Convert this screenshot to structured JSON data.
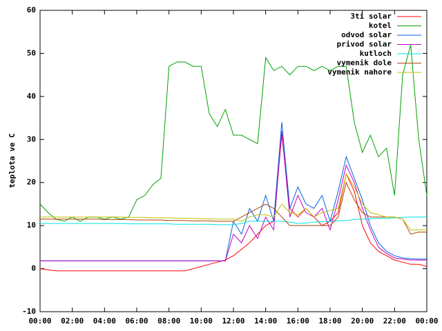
{
  "chart_data": {
    "type": "line",
    "ylabel": "teplota ve C",
    "x": [
      0,
      0.5,
      1,
      1.5,
      2,
      2.5,
      3,
      3.5,
      4,
      4.5,
      5,
      5.5,
      6,
      6.5,
      7,
      7.5,
      8,
      8.5,
      9,
      9.5,
      10,
      10.5,
      11,
      11.5,
      12,
      12.5,
      13,
      13.5,
      14,
      14.5,
      15,
      15.5,
      16,
      16.5,
      17,
      17.5,
      18,
      18.5,
      19,
      19.5,
      20,
      20.5,
      21,
      21.5,
      22,
      22.5,
      23,
      23.5,
      24
    ],
    "xlim": [
      0,
      24
    ],
    "xticks": [
      {
        "value": 0,
        "label": "00:00"
      },
      {
        "value": 2,
        "label": "02:00"
      },
      {
        "value": 4,
        "label": "04:00"
      },
      {
        "value": 6,
        "label": "06:00"
      },
      {
        "value": 8,
        "label": "08:00"
      },
      {
        "value": 10,
        "label": "10:00"
      },
      {
        "value": 12,
        "label": "12:00"
      },
      {
        "value": 14,
        "label": "14:00"
      },
      {
        "value": 16,
        "label": "16:00"
      },
      {
        "value": 18,
        "label": "18:00"
      },
      {
        "value": 20,
        "label": "20:00"
      },
      {
        "value": 22,
        "label": "22:00"
      },
      {
        "value": 24,
        "label": "00:00"
      }
    ],
    "ylim": [
      -10,
      60
    ],
    "yticks": [
      -10,
      0,
      10,
      20,
      30,
      40,
      50,
      60
    ],
    "legend": "top-right",
    "series": [
      {
        "name": "3ti solar",
        "color": "#ff0000",
        "values": [
          0,
          -0.3,
          -0.5,
          -0.5,
          -0.5,
          -0.5,
          -0.5,
          -0.5,
          -0.5,
          -0.5,
          -0.5,
          -0.5,
          -0.5,
          -0.5,
          -0.5,
          -0.5,
          -0.5,
          -0.5,
          -0.5,
          0,
          0.5,
          1,
          1.5,
          2,
          3,
          4.5,
          6,
          8,
          10,
          11,
          31,
          14,
          12,
          14,
          12,
          10,
          11,
          13,
          22,
          18,
          10,
          6,
          4,
          3,
          2,
          1.5,
          1,
          1,
          0.5
        ]
      },
      {
        "name": "kotel",
        "color": "#00a000",
        "values": [
          15,
          13,
          11.5,
          11,
          12,
          11,
          12,
          12,
          11.5,
          12,
          11.5,
          12,
          16,
          17,
          19.5,
          21,
          47,
          48,
          48,
          47,
          47,
          36,
          33,
          37,
          31,
          31,
          30,
          29,
          49,
          46,
          47,
          45,
          47,
          47,
          46,
          47,
          46,
          47,
          47,
          34,
          27,
          31,
          26,
          28,
          17,
          45,
          52,
          30,
          17
        ]
      },
      {
        "name": "odvod solar",
        "color": "#0060e0",
        "values": [
          1.8,
          1.8,
          1.8,
          1.8,
          1.8,
          1.8,
          1.8,
          1.8,
          1.8,
          1.8,
          1.8,
          1.8,
          1.8,
          1.8,
          1.8,
          1.8,
          1.8,
          1.8,
          1.8,
          1.8,
          1.8,
          1.8,
          1.8,
          1.8,
          11,
          8,
          14,
          11,
          17,
          11,
          34,
          14,
          19,
          15,
          14,
          17,
          11,
          18,
          26,
          21,
          16,
          10,
          6,
          4,
          3,
          2.5,
          2.3,
          2.2,
          2.2
        ]
      },
      {
        "name": "privod solar",
        "color": "#c000c0",
        "values": [
          1.8,
          1.8,
          1.8,
          1.8,
          1.8,
          1.8,
          1.8,
          1.8,
          1.8,
          1.8,
          1.8,
          1.8,
          1.8,
          1.8,
          1.8,
          1.8,
          1.8,
          1.8,
          1.8,
          1.8,
          1.8,
          1.8,
          1.8,
          1.8,
          8,
          6,
          10,
          7,
          12,
          9,
          32,
          12,
          17,
          13,
          12,
          14,
          9,
          16,
          24,
          20,
          14,
          9,
          5,
          3.5,
          2.5,
          2.2,
          2,
          2,
          2
        ]
      },
      {
        "name": "kutloch",
        "color": "#00e0e0",
        "values": [
          10.5,
          10.5,
          10.5,
          10.5,
          10.5,
          10.5,
          10.5,
          10.5,
          10.5,
          10.5,
          10.5,
          10.4,
          10.4,
          10.4,
          10.4,
          10.4,
          10.4,
          10.3,
          10.3,
          10.3,
          10.3,
          10.3,
          10.2,
          10.2,
          10.2,
          10.5,
          11,
          11,
          11,
          11,
          11,
          10.8,
          10.5,
          10.6,
          10.8,
          10.9,
          11,
          11.1,
          11.2,
          11.4,
          11.5,
          11.6,
          11.7,
          11.7,
          11.8,
          11.9,
          12,
          12,
          12
        ]
      },
      {
        "name": "vymenik dole",
        "color": "#b04000",
        "values": [
          11.5,
          11.5,
          11.5,
          11.5,
          11.5,
          11.5,
          11.5,
          11.5,
          11.4,
          11.4,
          11.4,
          11.4,
          11.3,
          11.3,
          11.3,
          11.3,
          11.2,
          11.2,
          11.2,
          11.1,
          11.1,
          11.1,
          11,
          11,
          11,
          12,
          13,
          14,
          15,
          14,
          12,
          10,
          10,
          10,
          10,
          10,
          10,
          12,
          20,
          16,
          13,
          12,
          12,
          12,
          12,
          11.5,
          8,
          8.5,
          8.5
        ]
      },
      {
        "name": "vymenik nahore",
        "color": "#c0c000",
        "values": [
          12,
          12,
          12,
          12,
          12,
          12,
          12,
          12,
          12,
          12,
          12,
          11.9,
          11.9,
          11.9,
          11.8,
          11.8,
          11.8,
          11.7,
          11.7,
          11.7,
          11.6,
          11.6,
          11.5,
          11.5,
          11.5,
          11,
          12,
          12.5,
          12.5,
          12,
          15,
          13,
          12.5,
          14,
          12,
          13,
          13.5,
          14,
          22,
          19,
          15,
          13,
          12.5,
          12,
          12,
          11.5,
          9,
          9,
          9
        ]
      }
    ]
  }
}
